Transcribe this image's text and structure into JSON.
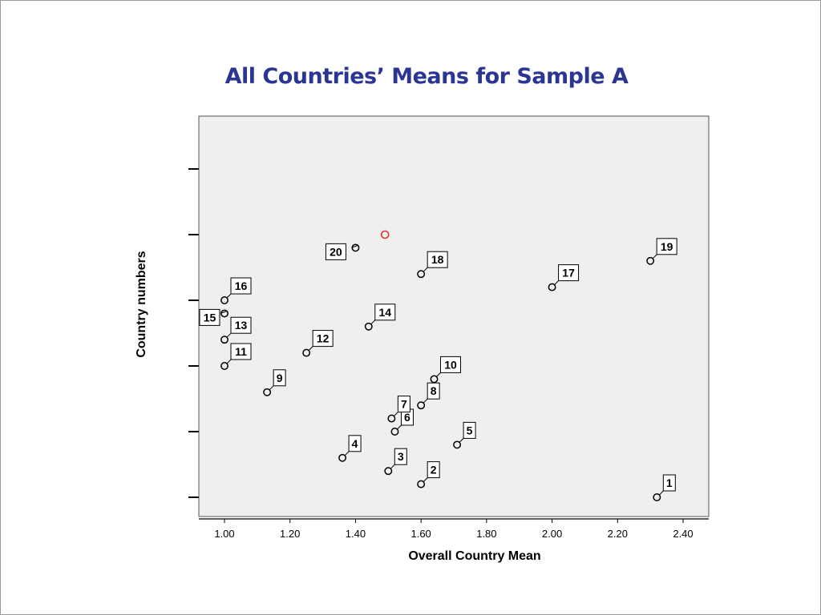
{
  "title": "All Countries’ Means for Sample A",
  "chart_data": {
    "type": "scatter",
    "title": "All Countries’ Means for Sample A",
    "xlabel": "Overall Country Mean",
    "ylabel": "Country numbers",
    "xlim": [
      0.92,
      2.48
    ],
    "ylim": [
      0,
      21
    ],
    "x_ticks": [
      "1.00",
      "1.20",
      "1.40",
      "1.60",
      "1.80",
      "2.00",
      "2.20",
      "2.40"
    ],
    "x_tick_values": [
      1.0,
      1.2,
      1.4,
      1.6,
      1.8,
      2.0,
      2.2,
      2.4
    ],
    "y_tick_values": [
      1,
      6,
      11,
      16,
      21,
      26
    ],
    "grid": false,
    "plot_background": "#efefef",
    "marker_color": "#000000",
    "points": [
      {
        "label": "1",
        "x": 2.32,
        "y": 1
      },
      {
        "label": "2",
        "x": 1.6,
        "y": 2
      },
      {
        "label": "3",
        "x": 1.5,
        "y": 3
      },
      {
        "label": "4",
        "x": 1.36,
        "y": 4
      },
      {
        "label": "5",
        "x": 1.71,
        "y": 5
      },
      {
        "label": "6",
        "x": 1.52,
        "y": 6
      },
      {
        "label": "7",
        "x": 1.51,
        "y": 7
      },
      {
        "label": "8",
        "x": 1.6,
        "y": 8
      },
      {
        "label": "9",
        "x": 1.13,
        "y": 9
      },
      {
        "label": "10",
        "x": 1.64,
        "y": 10
      },
      {
        "label": "11",
        "x": 1.0,
        "y": 11
      },
      {
        "label": "12",
        "x": 1.25,
        "y": 12
      },
      {
        "label": "13",
        "x": 1.0,
        "y": 13
      },
      {
        "label": "14",
        "x": 1.44,
        "y": 14
      },
      {
        "label": "15",
        "x": 1.0,
        "y": 15
      },
      {
        "label": "16",
        "x": 1.0,
        "y": 16
      },
      {
        "label": "17",
        "x": 2.0,
        "y": 17
      },
      {
        "label": "18",
        "x": 1.6,
        "y": 18
      },
      {
        "label": "19",
        "x": 2.3,
        "y": 19
      },
      {
        "label": "20",
        "x": 1.4,
        "y": 20
      }
    ],
    "highlight_point": {
      "x": 1.49,
      "y": 21,
      "color": "#e03030"
    }
  }
}
